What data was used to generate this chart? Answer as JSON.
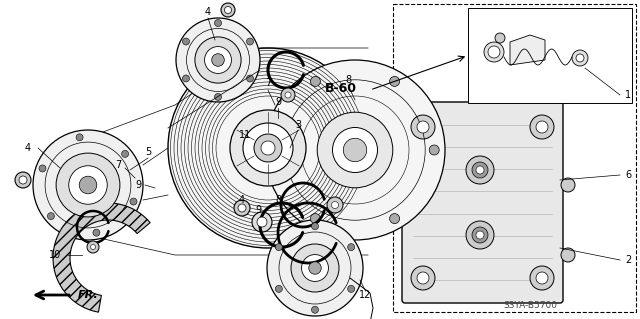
{
  "bg_color": "#ffffff",
  "fig_width": 6.4,
  "fig_height": 3.19,
  "diagram_code": "S3YA-B5700",
  "ref_code": "B-60",
  "fr_label": "FR."
}
